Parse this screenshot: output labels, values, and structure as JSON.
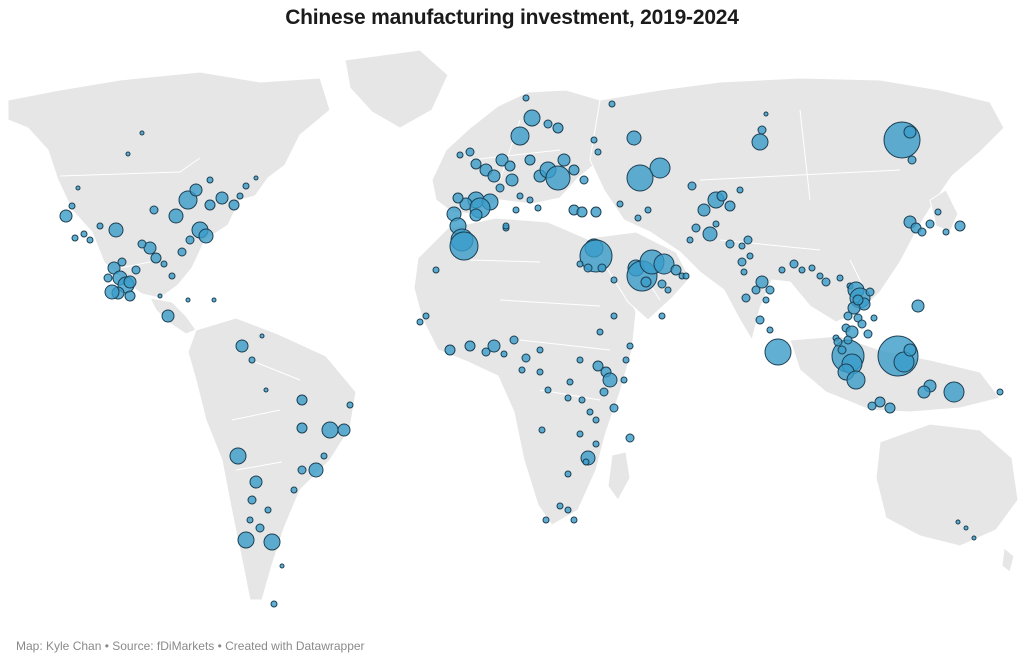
{
  "title": "Chinese manufacturing investment, 2019-2024",
  "footer": "Map: Kyle Chan • Source: fDiMarkets • Created with Datawrapper",
  "colors": {
    "land": "#e6e6e6",
    "border": "#ffffff",
    "bubble_fill": "#3a9cc9",
    "bubble_stroke": "#1d3f52"
  }
}
